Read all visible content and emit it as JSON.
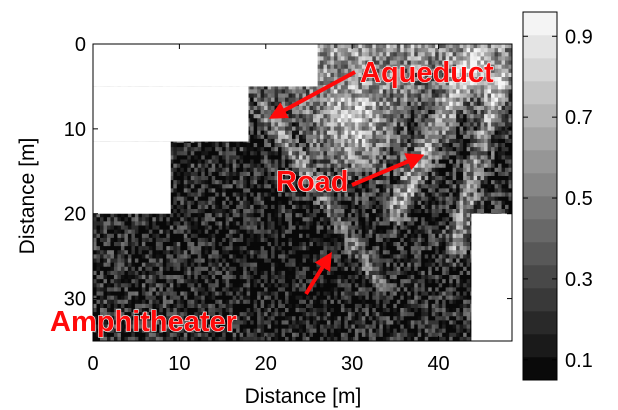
{
  "chart_data": {
    "type": "heatmap",
    "title": "",
    "xlabel": "Distance [m]",
    "ylabel": "Distance [m]",
    "xlim": [
      0,
      48.5
    ],
    "ylim": [
      0,
      35
    ],
    "y_reversed": true,
    "x_ticks": [
      "0",
      "10",
      "20",
      "30",
      "40"
    ],
    "y_ticks": [
      "0",
      "10",
      "20",
      "30"
    ],
    "colorbar": {
      "colormap": "gray",
      "range": [
        0.05,
        0.96
      ],
      "ticks": [
        "0.1",
        "0.3",
        "0.5",
        "0.7",
        "0.9"
      ],
      "levels": 16
    },
    "masked_regions": [
      {
        "x": [
          0,
          26
        ],
        "y": [
          0,
          5
        ]
      },
      {
        "x": [
          0,
          18
        ],
        "y": [
          5,
          11.5
        ]
      },
      {
        "x": [
          0,
          9
        ],
        "y": [
          11.5,
          20
        ]
      },
      {
        "x": [
          43.8,
          48.5
        ],
        "y": [
          20,
          35
        ]
      }
    ],
    "annotations": [
      {
        "text": "Aqueduct",
        "points_to": [
          21,
          8
        ]
      },
      {
        "text": "Road",
        "points_to": [
          38,
          12
        ]
      },
      {
        "text": "Amphitheater",
        "points_to": [
          28.5,
          24.5
        ]
      }
    ]
  }
}
